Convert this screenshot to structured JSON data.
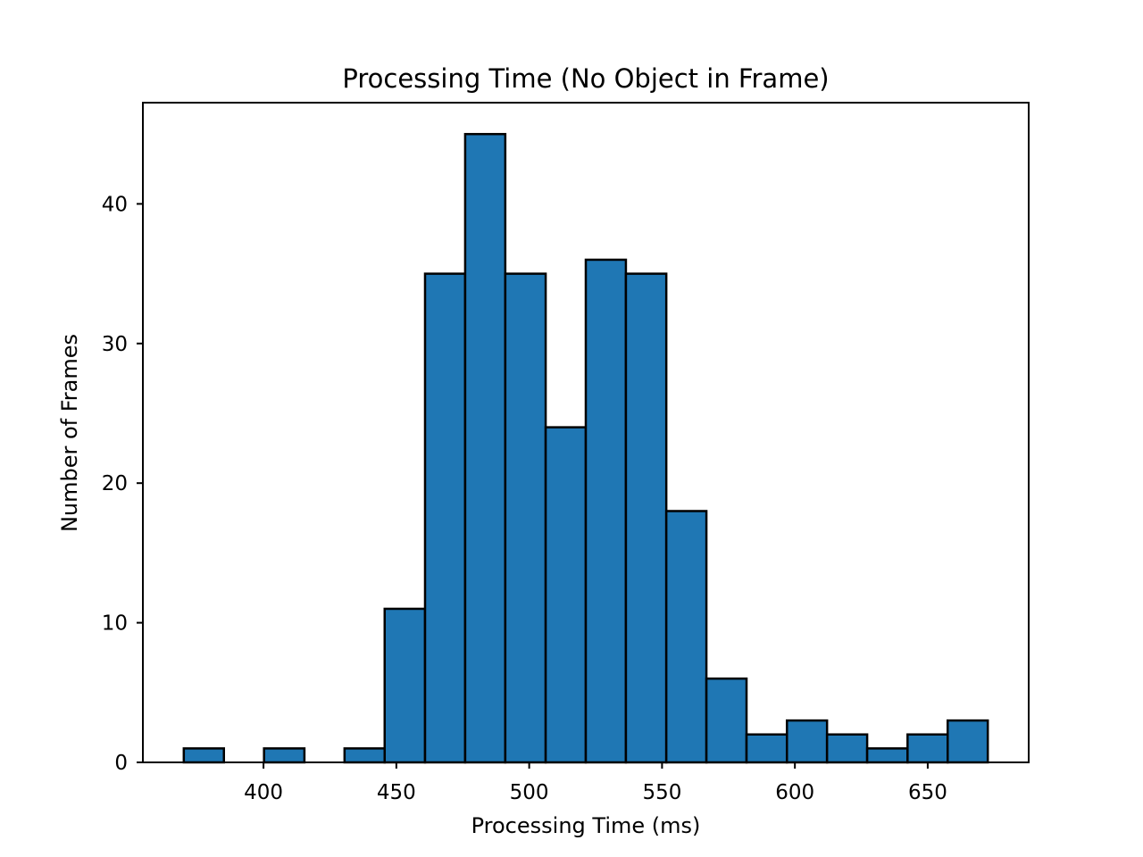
{
  "chart_data": {
    "type": "bar",
    "title": "Processing Time (No Object in Frame)",
    "xlabel": "Processing Time (ms)",
    "ylabel": "Number of Frames",
    "bar_color": "#1f77b4",
    "edge_color": "#000000",
    "xlim": [
      354.6,
      688.0
    ],
    "ylim": [
      0,
      47.25
    ],
    "xticks": [
      400,
      450,
      500,
      550,
      600,
      650
    ],
    "yticks": [
      0,
      10,
      20,
      30,
      40
    ],
    "bins": [
      {
        "start": 370.0,
        "end": 385.1,
        "count": 1
      },
      {
        "start": 385.1,
        "end": 400.2,
        "count": 0
      },
      {
        "start": 400.2,
        "end": 415.4,
        "count": 1
      },
      {
        "start": 415.4,
        "end": 430.5,
        "count": 0
      },
      {
        "start": 430.5,
        "end": 445.6,
        "count": 1
      },
      {
        "start": 445.6,
        "end": 460.8,
        "count": 11
      },
      {
        "start": 460.8,
        "end": 475.9,
        "count": 35
      },
      {
        "start": 475.9,
        "end": 491.0,
        "count": 45
      },
      {
        "start": 491.0,
        "end": 506.2,
        "count": 35
      },
      {
        "start": 506.2,
        "end": 521.3,
        "count": 24
      },
      {
        "start": 521.3,
        "end": 536.4,
        "count": 36
      },
      {
        "start": 536.4,
        "end": 551.6,
        "count": 35
      },
      {
        "start": 551.6,
        "end": 566.7,
        "count": 18
      },
      {
        "start": 566.7,
        "end": 581.8,
        "count": 6
      },
      {
        "start": 581.8,
        "end": 597.0,
        "count": 2
      },
      {
        "start": 597.0,
        "end": 612.1,
        "count": 3
      },
      {
        "start": 612.1,
        "end": 627.2,
        "count": 2
      },
      {
        "start": 627.2,
        "end": 642.4,
        "count": 1
      },
      {
        "start": 642.4,
        "end": 657.5,
        "count": 2
      },
      {
        "start": 657.5,
        "end": 672.6,
        "count": 3
      }
    ],
    "grid": false,
    "legend": "none"
  }
}
